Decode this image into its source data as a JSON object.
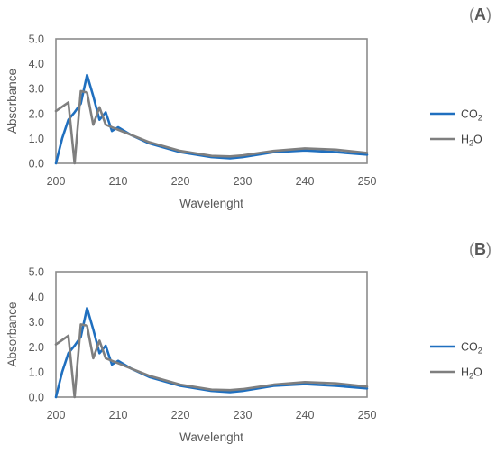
{
  "chart_data": [
    {
      "type": "line",
      "panel_label": {
        "open": "(",
        "letter": "A",
        "close": ")"
      },
      "xlabel": "Wavelenght",
      "ylabel": "Absorbance",
      "xlim": [
        200,
        250
      ],
      "ylim": [
        0,
        5
      ],
      "x_ticks": [
        "200",
        "210",
        "220",
        "230",
        "240",
        "250"
      ],
      "y_ticks": [
        "0.0",
        "1.0",
        "2.0",
        "3.0",
        "4.0",
        "5.0"
      ],
      "grid": false,
      "legend_position": "right",
      "series": [
        {
          "name": "CO2",
          "name_main": "CO",
          "name_sub": "2",
          "color": "#1f6fbf",
          "x": [
            200,
            201,
            202,
            203,
            204,
            205,
            206,
            207,
            208,
            209,
            210,
            212,
            215,
            220,
            225,
            228,
            230,
            235,
            240,
            245,
            250
          ],
          "y": [
            0.0,
            1.0,
            1.75,
            2.05,
            2.4,
            3.55,
            2.7,
            1.75,
            2.05,
            1.3,
            1.45,
            1.15,
            0.8,
            0.45,
            0.25,
            0.2,
            0.25,
            0.45,
            0.52,
            0.45,
            0.35
          ]
        },
        {
          "name": "H2O",
          "name_main": "H",
          "name_sub": "2",
          "name_tail": "O",
          "color": "#7f7f7f",
          "x": [
            200,
            202,
            203,
            204,
            205,
            206,
            207,
            208,
            209,
            210,
            212,
            215,
            220,
            225,
            228,
            230,
            235,
            240,
            245,
            250
          ],
          "y": [
            2.1,
            2.45,
            0.0,
            2.9,
            2.85,
            1.55,
            2.25,
            1.55,
            1.45,
            1.35,
            1.15,
            0.85,
            0.5,
            0.3,
            0.28,
            0.32,
            0.5,
            0.6,
            0.55,
            0.42
          ]
        }
      ]
    },
    {
      "type": "line",
      "panel_label": {
        "open": "(",
        "letter": "B",
        "close": ")"
      },
      "xlabel": "Wavelenght",
      "ylabel": "Absorbance",
      "xlim": [
        200,
        250
      ],
      "ylim": [
        0,
        5
      ],
      "x_ticks": [
        "200",
        "210",
        "220",
        "230",
        "240",
        "250"
      ],
      "y_ticks": [
        "0.0",
        "1.0",
        "2.0",
        "3.0",
        "4.0",
        "5.0"
      ],
      "grid": false,
      "legend_position": "right",
      "series": [
        {
          "name": "CO2",
          "name_main": "CO",
          "name_sub": "2",
          "color": "#1f6fbf",
          "x": [
            200,
            201,
            202,
            203,
            204,
            205,
            206,
            207,
            208,
            209,
            210,
            212,
            215,
            220,
            225,
            228,
            230,
            235,
            240,
            245,
            250
          ],
          "y": [
            0.0,
            1.0,
            1.75,
            2.05,
            2.4,
            3.55,
            2.7,
            1.75,
            2.05,
            1.3,
            1.45,
            1.15,
            0.8,
            0.45,
            0.25,
            0.2,
            0.25,
            0.45,
            0.52,
            0.45,
            0.35
          ]
        },
        {
          "name": "H2O",
          "name_main": "H",
          "name_sub": "2",
          "name_tail": "O",
          "color": "#7f7f7f",
          "x": [
            200,
            202,
            203,
            204,
            205,
            206,
            207,
            208,
            209,
            210,
            212,
            215,
            220,
            225,
            228,
            230,
            235,
            240,
            245,
            250
          ],
          "y": [
            2.1,
            2.45,
            0.0,
            2.9,
            2.85,
            1.55,
            2.25,
            1.55,
            1.45,
            1.35,
            1.15,
            0.85,
            0.5,
            0.3,
            0.28,
            0.32,
            0.5,
            0.6,
            0.55,
            0.42
          ]
        }
      ]
    }
  ]
}
